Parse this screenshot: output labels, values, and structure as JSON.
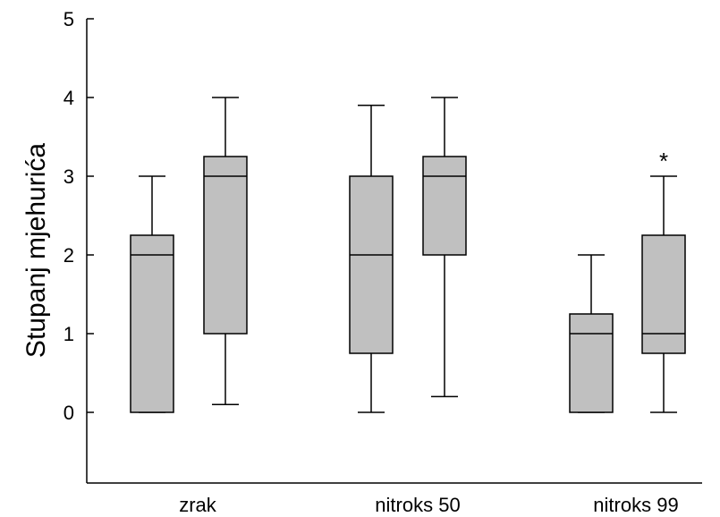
{
  "chart_data": {
    "type": "box",
    "ylabel": "Stupanj mjehurića",
    "xlabel": "",
    "ylim": [
      -1,
      5
    ],
    "yticks": [
      "0",
      "1",
      "2",
      "3",
      "4",
      "5"
    ],
    "categories": [
      "zrak",
      "nitroks 50",
      "nitroks 99"
    ],
    "grid": false,
    "legend": "none",
    "box_fill": "#c0c0c0",
    "boxes": [
      {
        "category": "zrak",
        "whisker_low": 0,
        "q1": 0,
        "median": 2,
        "q3": 2.25,
        "whisker_high": 3,
        "annotation": ""
      },
      {
        "category": "zrak",
        "whisker_low": 0.1,
        "q1": 1,
        "median": 3,
        "q3": 3.25,
        "whisker_high": 4,
        "annotation": ""
      },
      {
        "category": "nitroks 50",
        "whisker_low": 0,
        "q1": 0.75,
        "median": 2,
        "q3": 3,
        "whisker_high": 3.9,
        "annotation": ""
      },
      {
        "category": "nitroks 50",
        "whisker_low": 0.2,
        "q1": 2,
        "median": 3,
        "q3": 3.25,
        "whisker_high": 4,
        "annotation": ""
      },
      {
        "category": "nitroks 99",
        "whisker_low": 0,
        "q1": 0,
        "median": 1,
        "q3": 1.25,
        "whisker_high": 2,
        "annotation": ""
      },
      {
        "category": "nitroks 99",
        "whisker_low": 0,
        "q1": 0.75,
        "median": 1,
        "q3": 2.25,
        "whisker_high": 3,
        "annotation": "*"
      }
    ]
  }
}
